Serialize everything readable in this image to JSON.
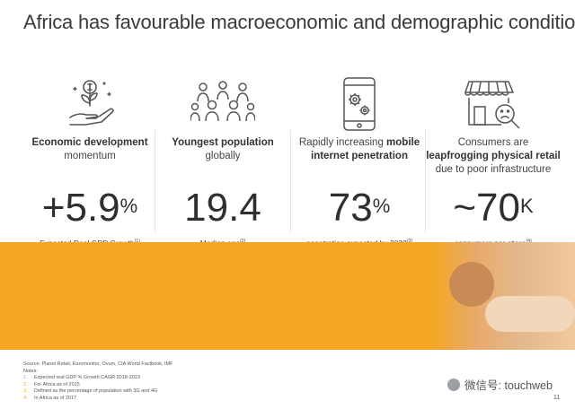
{
  "title": "Africa has favourable macroeconomic and demographic conditions",
  "columns": [
    {
      "icon": "plant-money-hand-icon",
      "cap_line1_bold": "Economic development",
      "cap_line2": "momentum",
      "big": "+5.9",
      "big_sup": "%",
      "sub": "Expected Real GDP Growth",
      "sub_sup": "(1)"
    },
    {
      "icon": "crowd-people-icon",
      "cap_line1_bold": "Youngest population",
      "cap_line2": "globally",
      "big": "19.4",
      "big_sup": "",
      "sub": "Median age",
      "sub_sup": "(2)"
    },
    {
      "icon": "mobile-gears-icon",
      "cap_line1": "Rapidly increasing",
      "cap_line1_bold": "mobile",
      "cap_line2_bold": "internet penetration",
      "big": "73",
      "big_sup": "%",
      "sub": "penetration expected by 2022",
      "sub_sup": "(3)"
    },
    {
      "icon": "storefront-sad-icon",
      "cap_line1": "Consumers are",
      "cap_line2_bold": "leapfrogging physical retail",
      "cap_line3": "due to poor infrastructure",
      "big": "~70",
      "big_sup": "K",
      "sub": "consumers per",
      "sub_bold": "store",
      "sub_sup": "(4)"
    }
  ],
  "notes": {
    "source": "Source: Planet Retail, Euromonitor, Ovum, CIA World Factbook, IMF",
    "label": "Notes:",
    "items": [
      {
        "n": "1.",
        "text": "Expected real GDP % Growth CAGR 2018-2023"
      },
      {
        "n": "2.",
        "text": "For Africa as of 2015"
      },
      {
        "n": "3.",
        "text": "Defined as the percentage of population with 3G and 4G"
      },
      {
        "n": "4.",
        "text": "In Africa as of 2017"
      }
    ]
  },
  "watermark": "微信号: touchweb",
  "page_number": "11",
  "colors": {
    "accent": "#f5a623",
    "text": "#333333"
  }
}
